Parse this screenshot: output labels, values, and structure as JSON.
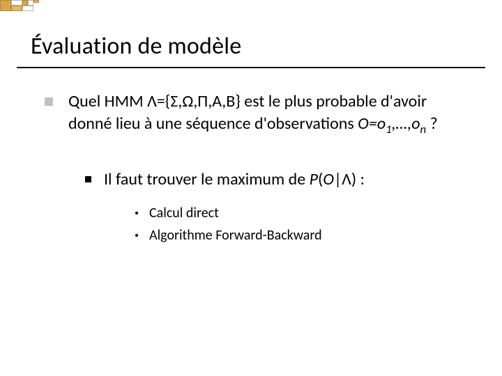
{
  "title": "Évaluation de modèle",
  "lvl1_a": "Quel HMM ",
  "lvl1_b": "Λ",
  "lvl1_c": "={",
  "lvl1_d": "Σ",
  "lvl1_e": ",",
  "lvl1_f": "Ω",
  "lvl1_g": ",",
  "lvl1_h": "Π",
  "lvl1_i": ",A,B} est le plus probable d'avoir donné lieu à une séquence d'observations ",
  "lvl1_j": "O=o",
  "lvl1_j_sub": "1",
  "lvl1_k": ",…,o",
  "lvl1_k_sub": "n",
  "lvl1_l": " ?",
  "lvl2_a": "Il faut trouver le maximum de ",
  "lvl2_b": "P",
  "lvl2_c": "(",
  "lvl2_d": "O",
  "lvl2_e": "|",
  "lvl2_f": "Λ",
  "lvl2_g": ") :",
  "lvl3_1": "Calcul direct",
  "lvl3_2": "Algorithme Forward-Backward",
  "colors": {
    "background": "#ffffff",
    "text": "#000000",
    "lvl1_bullet": "#c0c0c0",
    "lvl2_bullet": "#000000",
    "lvl3_bullet": "#000000",
    "underline": "#000000",
    "deco_orange": "#d9a648",
    "deco_light": "#e6b85c"
  },
  "fontsizes": {
    "title": 34,
    "body": 24,
    "lvl3": 20
  }
}
